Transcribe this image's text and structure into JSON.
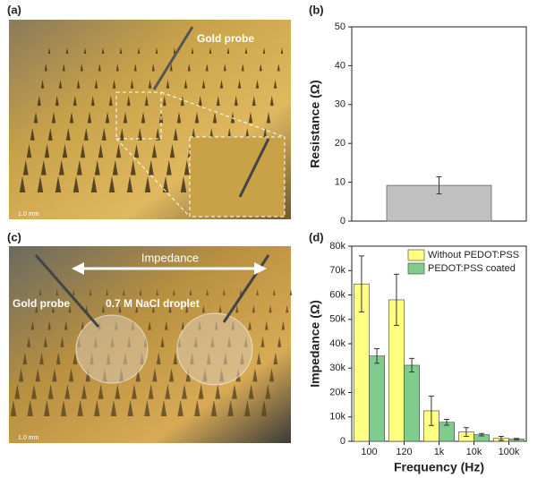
{
  "panel_labels": [
    "(a)",
    "(b)",
    "(c)",
    "(d)"
  ],
  "photo_labels": {
    "a_probe": "Gold probe",
    "a_scale": "1.0 mm",
    "c_probe": "Gold probe",
    "c_impedance": "Impedance",
    "c_droplet": "0.7 M NaCl droplet",
    "c_scale": "1.0 mm"
  },
  "chart_data": [
    {
      "type": "bar",
      "ylabel": "Resistance (Ω)",
      "categories": [
        null
      ],
      "values": [
        9.2
      ],
      "errors": [
        2.2
      ],
      "color": "#c0c0c0",
      "ylim": [
        0,
        50
      ],
      "yticks": [
        0,
        10,
        20,
        30,
        40,
        50
      ]
    },
    {
      "type": "bar",
      "xlabel": "Frequency (Hz)",
      "ylabel": "Impedance (Ω)",
      "categories": [
        "100",
        "120",
        "1k",
        "10k",
        "100k"
      ],
      "series": [
        {
          "name": "Without PEDOT:PSS",
          "color": "#ffff80",
          "values": [
            64500,
            58000,
            12500,
            3800,
            1200
          ],
          "errors": [
            11500,
            10500,
            6000,
            1800,
            800
          ]
        },
        {
          "name": "PEDOT:PSS coated",
          "color": "#80cc8c",
          "values": [
            35000,
            31200,
            7800,
            2700,
            900
          ],
          "errors": [
            3000,
            2800,
            1200,
            500,
            300
          ]
        }
      ],
      "ylim": [
        0,
        80000
      ],
      "yticks": [
        0,
        {
          "value": 10000,
          "label": "10k"
        },
        {
          "value": 20000,
          "label": "20k"
        },
        {
          "value": 30000,
          "label": "30k"
        },
        {
          "value": 40000,
          "label": "40k"
        },
        {
          "value": 50000,
          "label": "50k"
        },
        {
          "value": 60000,
          "label": "60k"
        },
        {
          "value": 70000,
          "label": "70k"
        },
        {
          "value": 80000,
          "label": "80k"
        }
      ],
      "legend": "upper right"
    }
  ]
}
